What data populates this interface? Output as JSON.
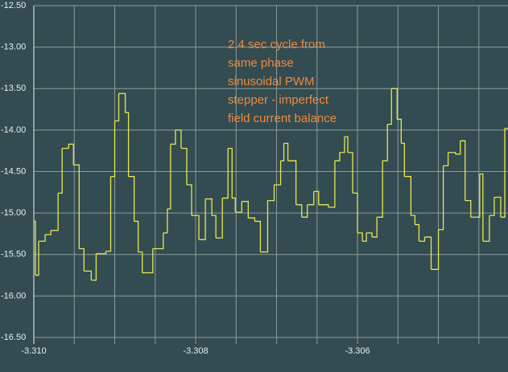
{
  "chart_data": {
    "type": "step",
    "annotation": [
      "2.4 sec cycle from",
      "same phase",
      "sinusoidal PWM",
      "stepper - imperfect",
      "field current balance"
    ],
    "annotation_color": "#f08a3c",
    "background": "#334c51",
    "grid": true,
    "grid_color": "#8c9c9e",
    "xlim": [
      -3.31,
      -3.30414
    ],
    "ylim": [
      -16.5,
      -12.5
    ],
    "xticks": [
      {
        "value": -3.31,
        "label": "-3.310"
      },
      {
        "value": -3.308,
        "label": "-3.308"
      },
      {
        "value": -3.306,
        "label": "-3.306"
      }
    ],
    "xminorticks": [
      -3.3095,
      -3.309,
      -3.3085,
      -3.3075,
      -3.307,
      -3.3065,
      -3.3055,
      -3.305,
      -3.3045
    ],
    "yticks": [
      {
        "value": -12.5,
        "label": "-12.50"
      },
      {
        "value": -13,
        "label": "-13.00"
      },
      {
        "value": -13.5,
        "label": "-13.50"
      },
      {
        "value": -14,
        "label": "-14.00"
      },
      {
        "value": -14.5,
        "label": "-14.50"
      },
      {
        "value": -15,
        "label": "-15.00"
      },
      {
        "value": -15.5,
        "label": "-15.50"
      },
      {
        "value": -16,
        "label": "-16.00"
      },
      {
        "value": -16.5,
        "label": "-16.50"
      }
    ],
    "x": [
      -3.31,
      -3.30998,
      -3.30994,
      -3.30986,
      -3.30979,
      -3.3097,
      -3.30965,
      -3.30957,
      -3.30951,
      -3.30944,
      -3.30938,
      -3.30929,
      -3.30923,
      -3.30911,
      -3.30905,
      -3.309,
      -3.30895,
      -3.30887,
      -3.30883,
      -3.30876,
      -3.30871,
      -3.30866,
      -3.30853,
      -3.3084,
      -3.30835,
      -3.30831,
      -3.30825,
      -3.30818,
      -3.30811,
      -3.30805,
      -3.30796,
      -3.30788,
      -3.3078,
      -3.30775,
      -3.30767,
      -3.3076,
      -3.30755,
      -3.30751,
      -3.30743,
      -3.30735,
      -3.30727,
      -3.3072,
      -3.30711,
      -3.30703,
      -3.30695,
      -3.30691,
      -3.30686,
      -3.30676,
      -3.30669,
      -3.30662,
      -3.30654,
      -3.30648,
      -3.30636,
      -3.30628,
      -3.30622,
      -3.30616,
      -3.30612,
      -3.30606,
      -3.306,
      -3.30594,
      -3.30589,
      -3.30582,
      -3.30576,
      -3.30569,
      -3.30563,
      -3.30558,
      -3.30551,
      -3.30546,
      -3.30542,
      -3.30534,
      -3.30529,
      -3.30524,
      -3.30517,
      -3.30509,
      -3.305,
      -3.30494,
      -3.30488,
      -3.30479,
      -3.30473,
      -3.30467,
      -3.3046,
      -3.30453,
      -3.30449,
      -3.30445,
      -3.30437,
      -3.30431,
      -3.30423,
      -3.30418
    ],
    "series": [
      {
        "color": "#e6e650",
        "values": [
          -15.1,
          -15.75,
          -15.34,
          -15.26,
          -15.21,
          -14.76,
          -14.22,
          -14.17,
          -14.42,
          -15.43,
          -15.7,
          -15.81,
          -15.49,
          -15.46,
          -14.56,
          -13.89,
          -13.56,
          -13.79,
          -14.56,
          -15.1,
          -15.47,
          -15.72,
          -15.43,
          -15.24,
          -14.95,
          -14.17,
          -14.0,
          -14.22,
          -14.66,
          -15.03,
          -15.32,
          -14.83,
          -15.03,
          -15.3,
          -14.82,
          -14.22,
          -14.82,
          -14.99,
          -14.86,
          -15.06,
          -15.1,
          -15.47,
          -14.85,
          -14.66,
          -14.37,
          -14.16,
          -14.37,
          -14.9,
          -15.05,
          -14.9,
          -14.74,
          -14.9,
          -14.93,
          -14.37,
          -14.27,
          -14.08,
          -14.27,
          -14.76,
          -15.24,
          -15.34,
          -15.24,
          -15.29,
          -15.05,
          -14.37,
          -13.93,
          -13.5,
          -13.87,
          -14.16,
          -14.56,
          -15.03,
          -15.14,
          -15.34,
          -15.29,
          -15.68,
          -15.2,
          -14.43,
          -14.27,
          -14.29,
          -14.13,
          -14.85,
          -15.05,
          -15.05,
          -14.53,
          -15.34,
          -15.03,
          -14.81,
          -15.05,
          -13.98
        ]
      }
    ]
  }
}
